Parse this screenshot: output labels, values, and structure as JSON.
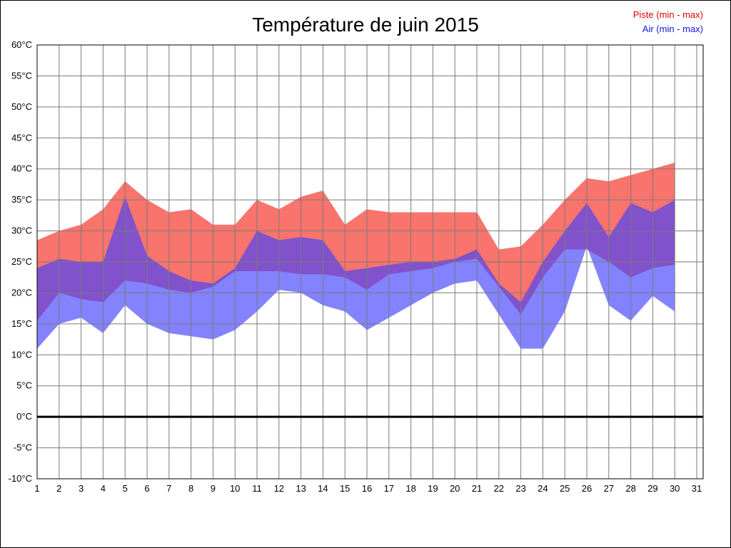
{
  "title": "Température de juin 2015",
  "legend": [
    {
      "label": "Piste (min - max)",
      "color": "#e00000"
    },
    {
      "label": "Air (min - max)",
      "color": "#1414e0"
    }
  ],
  "chart_data": {
    "type": "area",
    "title": "Température de juin 2015",
    "xlabel": "",
    "ylabel": "",
    "ylim": [
      -10,
      60
    ],
    "xlim": [
      1,
      31
    ],
    "grid": true,
    "y_ticks": [
      60,
      55,
      50,
      45,
      40,
      35,
      30,
      25,
      20,
      15,
      10,
      5,
      0,
      -5,
      -10
    ],
    "y_tick_suffix": "°C",
    "x_ticks": [
      1,
      2,
      3,
      4,
      5,
      6,
      7,
      8,
      9,
      10,
      11,
      12,
      13,
      14,
      15,
      16,
      17,
      18,
      19,
      20,
      21,
      22,
      23,
      24,
      25,
      26,
      27,
      28,
      29,
      30,
      31
    ],
    "days": [
      1,
      2,
      3,
      4,
      5,
      6,
      7,
      8,
      9,
      10,
      11,
      12,
      13,
      14,
      15,
      16,
      17,
      18,
      19,
      20,
      21,
      22,
      23,
      24,
      25,
      26,
      27,
      28,
      29,
      30
    ],
    "zero_line_value": 0,
    "colors": {
      "grid": "#7a7a7a",
      "border": "#000000",
      "zero_line": "#000000",
      "background": "#ffffff"
    },
    "series": [
      {
        "name": "Piste (min - max)",
        "fill": "#f8746c",
        "opacity": 1,
        "max": [
          28.5,
          30,
          31,
          33.5,
          38,
          35,
          33,
          33.5,
          31,
          31,
          35,
          33.5,
          35.5,
          36.5,
          31,
          33.5,
          33,
          33,
          33,
          33,
          33,
          27,
          27.5,
          31,
          35,
          38.5,
          38,
          39,
          40,
          41
        ],
        "min": [
          15.5,
          20,
          19,
          18.5,
          22,
          21.5,
          20.5,
          20,
          21,
          23.5,
          23.5,
          23.5,
          23,
          23,
          22.5,
          20.5,
          23,
          23.5,
          24,
          25,
          25.5,
          21,
          16.5,
          22.5,
          27,
          27,
          25,
          22.5,
          24,
          24.5
        ]
      },
      {
        "name": "Air (min - max)",
        "fill": "#4040ff",
        "opacity": 0.65,
        "max": [
          24,
          25.5,
          25,
          25,
          35.5,
          26,
          23.5,
          22,
          21.5,
          24,
          30,
          28.5,
          29,
          28.5,
          23.5,
          24,
          24.5,
          25,
          25,
          25.5,
          27,
          21.5,
          18.5,
          25,
          30,
          34.5,
          29,
          34.5,
          33,
          35
        ],
        "min": [
          11,
          15,
          16,
          13.5,
          18,
          15,
          13.5,
          13,
          12.5,
          14,
          17,
          20.5,
          20,
          18,
          17,
          14,
          16,
          18,
          20,
          21.5,
          22,
          16.5,
          11,
          11,
          17,
          27.5,
          18,
          15.5,
          19.5,
          17
        ]
      }
    ]
  }
}
